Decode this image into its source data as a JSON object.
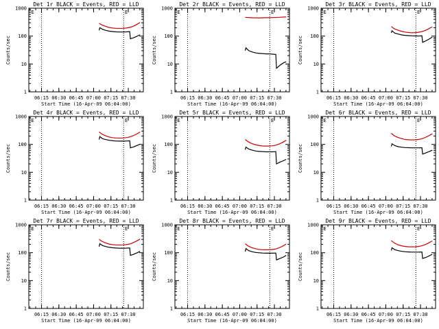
{
  "colors": {
    "events": "#000000",
    "lld": "#cc0000",
    "axes": "#000000",
    "background": "#ffffff"
  },
  "figure": {
    "x_tick_labels": [
      "06:15",
      "06:30",
      "06:45",
      "07:00",
      "07:15",
      "07:30"
    ],
    "y_tick_labels": [
      "1",
      "10",
      "100",
      "1000"
    ],
    "x_axis_label": "Start Time (16-Apr-09 06:04:00)",
    "y_axis_label": "Counts/sec",
    "marker_letters": [
      "E",
      "E"
    ]
  },
  "chart_data": [
    {
      "type": "line",
      "title": "Det 1r BLACK = Events, RED = LLD",
      "xlim": [
        6.067,
        7.717
      ],
      "ylim": [
        1,
        1000
      ],
      "yscale": "log",
      "vlines": [
        6.25,
        7.433
      ],
      "marker_x": [
        6.1,
        7.45
      ],
      "series": [
        {
          "color": "#cc0000",
          "x": [
            7.08,
            7.12,
            7.17,
            7.22,
            7.27,
            7.32,
            7.37,
            7.42,
            7.47,
            7.52,
            7.57,
            7.62,
            7.67
          ],
          "y": [
            290,
            250,
            225,
            205,
            195,
            190,
            188,
            190,
            195,
            205,
            225,
            260,
            310
          ]
        },
        {
          "color": "#000000",
          "x": [
            7.08,
            7.09,
            7.13,
            7.18,
            7.23,
            7.28,
            7.33,
            7.38,
            7.43,
            7.47,
            7.52,
            7.53,
            7.58,
            7.63,
            7.67
          ],
          "y": [
            160,
            200,
            175,
            160,
            150,
            145,
            142,
            140,
            140,
            142,
            145,
            80,
            88,
            100,
            112
          ]
        }
      ]
    },
    {
      "type": "line",
      "title": "Det 2r BLACK = Events, RED = LLD",
      "xlim": [
        6.067,
        7.717
      ],
      "ylim": [
        1,
        1000
      ],
      "yscale": "log",
      "vlines": [
        6.25,
        7.433
      ],
      "marker_x": [
        6.1,
        7.45
      ],
      "series": [
        {
          "color": "#cc0000",
          "x": [
            7.08,
            7.17,
            7.27,
            7.37,
            7.47,
            7.57,
            7.67
          ],
          "y": [
            470,
            455,
            450,
            455,
            460,
            470,
            490
          ]
        },
        {
          "color": "#000000",
          "x": [
            7.08,
            7.09,
            7.13,
            7.18,
            7.23,
            7.28,
            7.33,
            7.38,
            7.43,
            7.47,
            7.52,
            7.53,
            7.58,
            7.63,
            7.67
          ],
          "y": [
            30,
            38,
            30,
            27,
            25,
            24,
            23.5,
            23,
            23,
            22.5,
            22,
            7,
            9,
            11,
            12
          ]
        }
      ]
    },
    {
      "type": "line",
      "title": "Det 3r BLACK = Events, RED = LLD",
      "xlim": [
        6.067,
        7.717
      ],
      "ylim": [
        1,
        1000
      ],
      "yscale": "log",
      "vlines": [
        6.25,
        7.433
      ],
      "marker_x": [
        6.1,
        7.45
      ],
      "series": [
        {
          "color": "#cc0000",
          "x": [
            7.08,
            7.12,
            7.17,
            7.22,
            7.27,
            7.32,
            7.37,
            7.42,
            7.47,
            7.52,
            7.57,
            7.62,
            7.67
          ],
          "y": [
            220,
            185,
            165,
            150,
            140,
            135,
            132,
            133,
            137,
            145,
            160,
            185,
            215
          ]
        },
        {
          "color": "#000000",
          "x": [
            7.08,
            7.09,
            7.13,
            7.18,
            7.23,
            7.28,
            7.33,
            7.38,
            7.43,
            7.47,
            7.52,
            7.53,
            7.58,
            7.63,
            7.67
          ],
          "y": [
            130,
            155,
            128,
            118,
            110,
            106,
            104,
            102,
            101,
            101,
            102,
            60,
            68,
            80,
            92
          ]
        }
      ]
    },
    {
      "type": "line",
      "title": "Det 4r BLACK = Events, RED = LLD",
      "xlim": [
        6.067,
        7.717
      ],
      "ylim": [
        1,
        1000
      ],
      "yscale": "log",
      "vlines": [
        6.25,
        7.433
      ],
      "marker_x": [
        6.1,
        7.45
      ],
      "series": [
        {
          "color": "#cc0000",
          "x": [
            7.08,
            7.12,
            7.17,
            7.22,
            7.27,
            7.32,
            7.37,
            7.42,
            7.47,
            7.52,
            7.57,
            7.62,
            7.67
          ],
          "y": [
            280,
            235,
            205,
            185,
            175,
            170,
            168,
            170,
            175,
            185,
            205,
            235,
            280
          ]
        },
        {
          "color": "#000000",
          "x": [
            7.08,
            7.09,
            7.13,
            7.18,
            7.23,
            7.28,
            7.33,
            7.38,
            7.43,
            7.47,
            7.52,
            7.53,
            7.58,
            7.63,
            7.67
          ],
          "y": [
            150,
            190,
            160,
            148,
            140,
            135,
            132,
            131,
            131,
            132,
            135,
            75,
            82,
            92,
            102
          ]
        }
      ]
    },
    {
      "type": "line",
      "title": "Det 5r BLACK = Events, RED = LLD",
      "xlim": [
        6.067,
        7.717
      ],
      "ylim": [
        1,
        1000
      ],
      "yscale": "log",
      "vlines": [
        6.25,
        7.433
      ],
      "marker_x": [
        6.1,
        7.45
      ],
      "series": [
        {
          "color": "#cc0000",
          "x": [
            7.08,
            7.12,
            7.17,
            7.22,
            7.27,
            7.32,
            7.37,
            7.42,
            7.47,
            7.52,
            7.57,
            7.62,
            7.67
          ],
          "y": [
            150,
            125,
            108,
            98,
            92,
            88,
            87,
            87,
            89,
            94,
            103,
            118,
            140
          ]
        },
        {
          "color": "#000000",
          "x": [
            7.08,
            7.09,
            7.13,
            7.18,
            7.23,
            7.28,
            7.33,
            7.38,
            7.43,
            7.47,
            7.52,
            7.53,
            7.58,
            7.63,
            7.67
          ],
          "y": [
            65,
            80,
            68,
            62,
            58,
            56,
            55,
            54,
            54,
            54,
            55,
            20,
            23,
            26,
            29
          ]
        }
      ]
    },
    {
      "type": "line",
      "title": "Det 6r BLACK = Events, RED = LLD",
      "xlim": [
        6.067,
        7.717
      ],
      "ylim": [
        1,
        1000
      ],
      "yscale": "log",
      "vlines": [
        6.25,
        7.433
      ],
      "marker_x": [
        6.1,
        7.45
      ],
      "series": [
        {
          "color": "#cc0000",
          "x": [
            7.08,
            7.12,
            7.17,
            7.22,
            7.27,
            7.32,
            7.37,
            7.42,
            7.47,
            7.52,
            7.57,
            7.62,
            7.67
          ],
          "y": [
            250,
            205,
            180,
            162,
            152,
            147,
            145,
            146,
            150,
            160,
            178,
            205,
            240
          ]
        },
        {
          "color": "#000000",
          "x": [
            7.08,
            7.09,
            7.13,
            7.18,
            7.23,
            7.28,
            7.33,
            7.38,
            7.43,
            7.47,
            7.52,
            7.53,
            7.58,
            7.63,
            7.67
          ],
          "y": [
            85,
            105,
            90,
            83,
            79,
            77,
            76,
            75,
            75,
            75,
            76,
            45,
            50,
            56,
            62
          ]
        }
      ]
    },
    {
      "type": "line",
      "title": "Det 7r BLACK = Events, RED = LLD",
      "xlim": [
        6.067,
        7.717
      ],
      "ylim": [
        1,
        1000
      ],
      "yscale": "log",
      "vlines": [
        6.25,
        7.433
      ],
      "marker_x": [
        6.1,
        7.45
      ],
      "series": [
        {
          "color": "#cc0000",
          "x": [
            7.08,
            7.12,
            7.17,
            7.22,
            7.27,
            7.32,
            7.37,
            7.42,
            7.47,
            7.52,
            7.57,
            7.62,
            7.67
          ],
          "y": [
            300,
            255,
            225,
            205,
            195,
            190,
            188,
            190,
            195,
            205,
            228,
            262,
            310
          ]
        },
        {
          "color": "#000000",
          "x": [
            7.08,
            7.09,
            7.13,
            7.18,
            7.23,
            7.28,
            7.33,
            7.38,
            7.43,
            7.47,
            7.52,
            7.53,
            7.58,
            7.63,
            7.67
          ],
          "y": [
            165,
            210,
            180,
            165,
            155,
            150,
            147,
            145,
            145,
            146,
            148,
            80,
            88,
            100,
            112
          ]
        }
      ]
    },
    {
      "type": "line",
      "title": "Det 8r BLACK = Events, RED = LLD",
      "xlim": [
        6.067,
        7.717
      ],
      "ylim": [
        1,
        1000
      ],
      "yscale": "log",
      "vlines": [
        6.25,
        7.433
      ],
      "marker_x": [
        6.1,
        7.45
      ],
      "series": [
        {
          "color": "#cc0000",
          "x": [
            7.08,
            7.12,
            7.17,
            7.22,
            7.27,
            7.32,
            7.37,
            7.42,
            7.47,
            7.52,
            7.57,
            7.62,
            7.67
          ],
          "y": [
            210,
            175,
            153,
            140,
            132,
            128,
            127,
            127,
            130,
            136,
            150,
            172,
            205
          ]
        },
        {
          "color": "#000000",
          "x": [
            7.08,
            7.09,
            7.13,
            7.18,
            7.23,
            7.28,
            7.33,
            7.38,
            7.43,
            7.47,
            7.52,
            7.53,
            7.58,
            7.63,
            7.67
          ],
          "y": [
            110,
            140,
            118,
            108,
            102,
            99,
            97,
            96,
            96,
            96,
            97,
            55,
            62,
            70,
            80
          ]
        }
      ]
    },
    {
      "type": "line",
      "title": "Det 9r BLACK = Events, RED = LLD",
      "xlim": [
        6.067,
        7.717
      ],
      "ylim": [
        1,
        1000
      ],
      "yscale": "log",
      "vlines": [
        6.25,
        7.433
      ],
      "marker_x": [
        6.1,
        7.45
      ],
      "series": [
        {
          "color": "#cc0000",
          "x": [
            7.08,
            7.12,
            7.17,
            7.22,
            7.27,
            7.32,
            7.37,
            7.42,
            7.47,
            7.52,
            7.57,
            7.62,
            7.67
          ],
          "y": [
            270,
            225,
            195,
            178,
            168,
            163,
            162,
            163,
            167,
            177,
            196,
            225,
            265
          ]
        },
        {
          "color": "#000000",
          "x": [
            7.08,
            7.09,
            7.13,
            7.18,
            7.23,
            7.28,
            7.33,
            7.38,
            7.43,
            7.47,
            7.52,
            7.53,
            7.58,
            7.63,
            7.67
          ],
          "y": [
            120,
            150,
            128,
            118,
            112,
            108,
            106,
            105,
            105,
            105,
            106,
            62,
            68,
            78,
            88
          ]
        }
      ]
    }
  ]
}
